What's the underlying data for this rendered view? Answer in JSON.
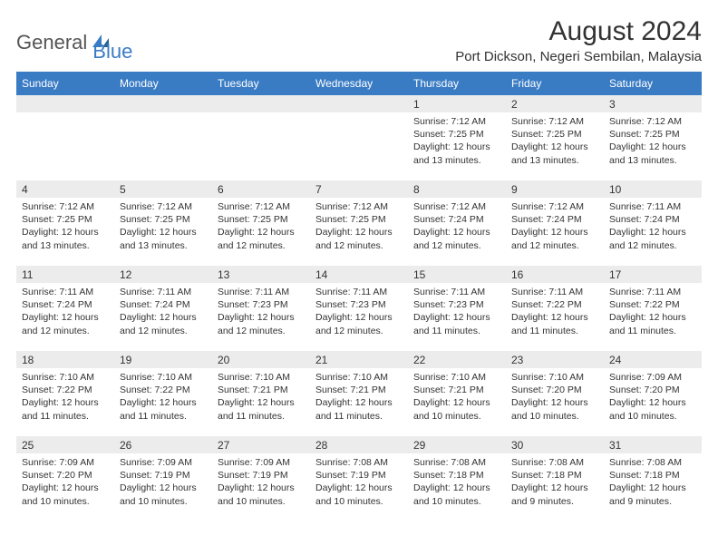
{
  "logo": {
    "general": "General",
    "blue": "Blue"
  },
  "title": "August 2024",
  "location": "Port Dickson, Negeri Sembilan, Malaysia",
  "colors": {
    "header_bg": "#3a7cc4",
    "header_text": "#ffffff",
    "daynum_bg": "#ececec",
    "text": "#333333",
    "background": "#ffffff"
  },
  "weekdays": [
    "Sunday",
    "Monday",
    "Tuesday",
    "Wednesday",
    "Thursday",
    "Friday",
    "Saturday"
  ],
  "weeks": [
    [
      {
        "day": "",
        "sunrise": "",
        "sunset": "",
        "daylight": ""
      },
      {
        "day": "",
        "sunrise": "",
        "sunset": "",
        "daylight": ""
      },
      {
        "day": "",
        "sunrise": "",
        "sunset": "",
        "daylight": ""
      },
      {
        "day": "",
        "sunrise": "",
        "sunset": "",
        "daylight": ""
      },
      {
        "day": "1",
        "sunrise": "Sunrise: 7:12 AM",
        "sunset": "Sunset: 7:25 PM",
        "daylight": "Daylight: 12 hours and 13 minutes."
      },
      {
        "day": "2",
        "sunrise": "Sunrise: 7:12 AM",
        "sunset": "Sunset: 7:25 PM",
        "daylight": "Daylight: 12 hours and 13 minutes."
      },
      {
        "day": "3",
        "sunrise": "Sunrise: 7:12 AM",
        "sunset": "Sunset: 7:25 PM",
        "daylight": "Daylight: 12 hours and 13 minutes."
      }
    ],
    [
      {
        "day": "4",
        "sunrise": "Sunrise: 7:12 AM",
        "sunset": "Sunset: 7:25 PM",
        "daylight": "Daylight: 12 hours and 13 minutes."
      },
      {
        "day": "5",
        "sunrise": "Sunrise: 7:12 AM",
        "sunset": "Sunset: 7:25 PM",
        "daylight": "Daylight: 12 hours and 13 minutes."
      },
      {
        "day": "6",
        "sunrise": "Sunrise: 7:12 AM",
        "sunset": "Sunset: 7:25 PM",
        "daylight": "Daylight: 12 hours and 12 minutes."
      },
      {
        "day": "7",
        "sunrise": "Sunrise: 7:12 AM",
        "sunset": "Sunset: 7:25 PM",
        "daylight": "Daylight: 12 hours and 12 minutes."
      },
      {
        "day": "8",
        "sunrise": "Sunrise: 7:12 AM",
        "sunset": "Sunset: 7:24 PM",
        "daylight": "Daylight: 12 hours and 12 minutes."
      },
      {
        "day": "9",
        "sunrise": "Sunrise: 7:12 AM",
        "sunset": "Sunset: 7:24 PM",
        "daylight": "Daylight: 12 hours and 12 minutes."
      },
      {
        "day": "10",
        "sunrise": "Sunrise: 7:11 AM",
        "sunset": "Sunset: 7:24 PM",
        "daylight": "Daylight: 12 hours and 12 minutes."
      }
    ],
    [
      {
        "day": "11",
        "sunrise": "Sunrise: 7:11 AM",
        "sunset": "Sunset: 7:24 PM",
        "daylight": "Daylight: 12 hours and 12 minutes."
      },
      {
        "day": "12",
        "sunrise": "Sunrise: 7:11 AM",
        "sunset": "Sunset: 7:24 PM",
        "daylight": "Daylight: 12 hours and 12 minutes."
      },
      {
        "day": "13",
        "sunrise": "Sunrise: 7:11 AM",
        "sunset": "Sunset: 7:23 PM",
        "daylight": "Daylight: 12 hours and 12 minutes."
      },
      {
        "day": "14",
        "sunrise": "Sunrise: 7:11 AM",
        "sunset": "Sunset: 7:23 PM",
        "daylight": "Daylight: 12 hours and 12 minutes."
      },
      {
        "day": "15",
        "sunrise": "Sunrise: 7:11 AM",
        "sunset": "Sunset: 7:23 PM",
        "daylight": "Daylight: 12 hours and 11 minutes."
      },
      {
        "day": "16",
        "sunrise": "Sunrise: 7:11 AM",
        "sunset": "Sunset: 7:22 PM",
        "daylight": "Daylight: 12 hours and 11 minutes."
      },
      {
        "day": "17",
        "sunrise": "Sunrise: 7:11 AM",
        "sunset": "Sunset: 7:22 PM",
        "daylight": "Daylight: 12 hours and 11 minutes."
      }
    ],
    [
      {
        "day": "18",
        "sunrise": "Sunrise: 7:10 AM",
        "sunset": "Sunset: 7:22 PM",
        "daylight": "Daylight: 12 hours and 11 minutes."
      },
      {
        "day": "19",
        "sunrise": "Sunrise: 7:10 AM",
        "sunset": "Sunset: 7:22 PM",
        "daylight": "Daylight: 12 hours and 11 minutes."
      },
      {
        "day": "20",
        "sunrise": "Sunrise: 7:10 AM",
        "sunset": "Sunset: 7:21 PM",
        "daylight": "Daylight: 12 hours and 11 minutes."
      },
      {
        "day": "21",
        "sunrise": "Sunrise: 7:10 AM",
        "sunset": "Sunset: 7:21 PM",
        "daylight": "Daylight: 12 hours and 11 minutes."
      },
      {
        "day": "22",
        "sunrise": "Sunrise: 7:10 AM",
        "sunset": "Sunset: 7:21 PM",
        "daylight": "Daylight: 12 hours and 10 minutes."
      },
      {
        "day": "23",
        "sunrise": "Sunrise: 7:10 AM",
        "sunset": "Sunset: 7:20 PM",
        "daylight": "Daylight: 12 hours and 10 minutes."
      },
      {
        "day": "24",
        "sunrise": "Sunrise: 7:09 AM",
        "sunset": "Sunset: 7:20 PM",
        "daylight": "Daylight: 12 hours and 10 minutes."
      }
    ],
    [
      {
        "day": "25",
        "sunrise": "Sunrise: 7:09 AM",
        "sunset": "Sunset: 7:20 PM",
        "daylight": "Daylight: 12 hours and 10 minutes."
      },
      {
        "day": "26",
        "sunrise": "Sunrise: 7:09 AM",
        "sunset": "Sunset: 7:19 PM",
        "daylight": "Daylight: 12 hours and 10 minutes."
      },
      {
        "day": "27",
        "sunrise": "Sunrise: 7:09 AM",
        "sunset": "Sunset: 7:19 PM",
        "daylight": "Daylight: 12 hours and 10 minutes."
      },
      {
        "day": "28",
        "sunrise": "Sunrise: 7:08 AM",
        "sunset": "Sunset: 7:19 PM",
        "daylight": "Daylight: 12 hours and 10 minutes."
      },
      {
        "day": "29",
        "sunrise": "Sunrise: 7:08 AM",
        "sunset": "Sunset: 7:18 PM",
        "daylight": "Daylight: 12 hours and 10 minutes."
      },
      {
        "day": "30",
        "sunrise": "Sunrise: 7:08 AM",
        "sunset": "Sunset: 7:18 PM",
        "daylight": "Daylight: 12 hours and 9 minutes."
      },
      {
        "day": "31",
        "sunrise": "Sunrise: 7:08 AM",
        "sunset": "Sunset: 7:18 PM",
        "daylight": "Daylight: 12 hours and 9 minutes."
      }
    ]
  ]
}
